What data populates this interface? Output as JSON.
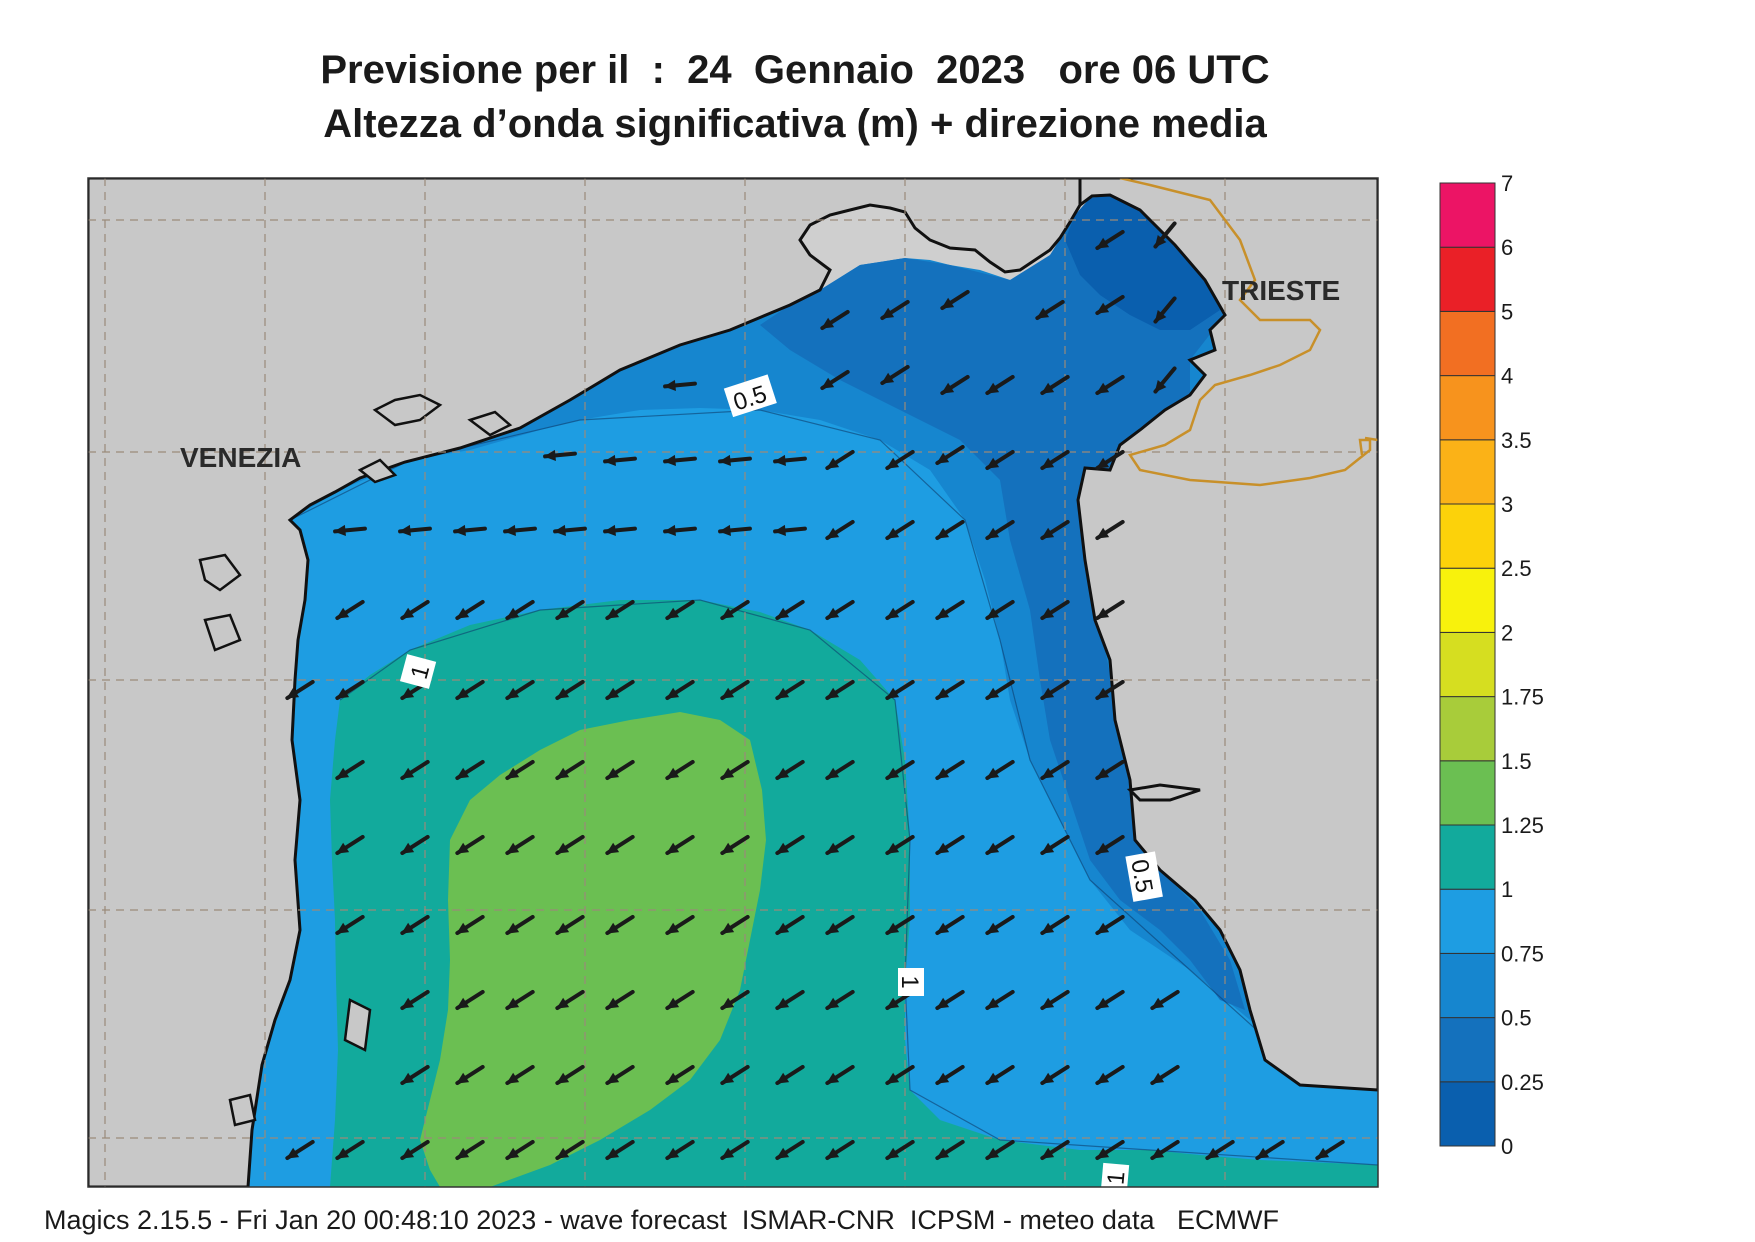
{
  "title": {
    "line1": "Previsione per il  :  24  Gennaio  2023   ore 06 UTC",
    "line2": "Altezza d’onda significativa (m) + direzione media"
  },
  "map": {
    "cities": {
      "venezia": "VENEZIA",
      "trieste": "TRIESTE"
    },
    "contour_labels": {
      "north_0_5": "0.5",
      "east_0_5": "0.5",
      "west_1": "1",
      "center_1": "1",
      "south_1": "1"
    },
    "colors": {
      "land": "#cfcfcf",
      "coastline": "#111111",
      "border": "#c8902a",
      "arrow": "#1a1a1a",
      "grid": "#9a8a7a"
    },
    "wave_direction": "toward south-west"
  },
  "legend": {
    "title": "",
    "bands": [
      {
        "from": "0",
        "to": "0.25",
        "color": "#0a5fae"
      },
      {
        "from": "0.25",
        "to": "0.5",
        "color": "#1471bd"
      },
      {
        "from": "0.5",
        "to": "0.75",
        "color": "#1686cf"
      },
      {
        "from": "0.75",
        "to": "1",
        "color": "#1e9de2"
      },
      {
        "from": "1",
        "to": "1.25",
        "color": "#12aa9c"
      },
      {
        "from": "1.25",
        "to": "1.5",
        "color": "#6bbf52"
      },
      {
        "from": "1.5",
        "to": "1.75",
        "color": "#a8cc3a"
      },
      {
        "from": "1.75",
        "to": "2",
        "color": "#d6de20"
      },
      {
        "from": "2",
        "to": "2.5",
        "color": "#f8f20c"
      },
      {
        "from": "2.5",
        "to": "3",
        "color": "#fcd20a"
      },
      {
        "from": "3",
        "to": "3.5",
        "color": "#fbb217"
      },
      {
        "from": "3.5",
        "to": "4",
        "color": "#f7931d"
      },
      {
        "from": "4",
        "to": "5",
        "color": "#f26f22"
      },
      {
        "from": "5",
        "to": "6",
        "color": "#ea2027"
      },
      {
        "from": "6",
        "to": "7",
        "color": "#ec1465"
      }
    ],
    "ticks": [
      "0",
      "0.25",
      "0.5",
      "0.75",
      "1",
      "1.25",
      "1.5",
      "1.75",
      "2",
      "2.5",
      "3",
      "3.5",
      "4",
      "5",
      "6",
      "7"
    ]
  },
  "footer": "Magics 2.15.5 - Fri Jan 20 00:48:10 2023 - wave forecast  ISMAR-CNR  ICPSM - meteo data   ECMWF"
}
